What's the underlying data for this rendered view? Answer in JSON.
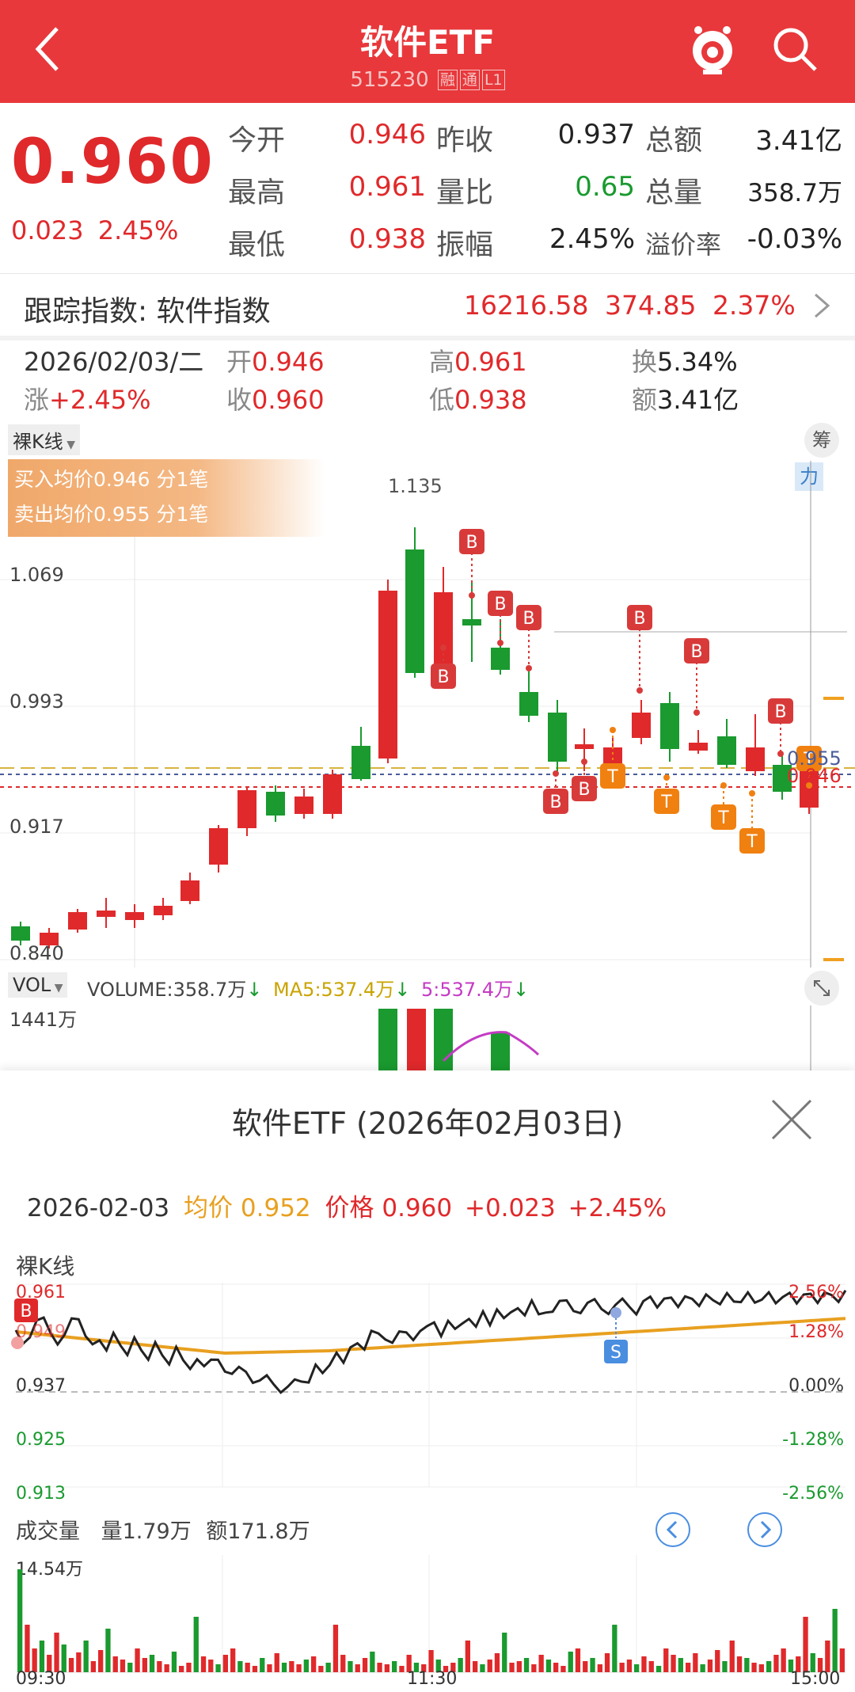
{
  "header": {
    "title": "软件ETF",
    "code": "515230",
    "tags": [
      "融",
      "通",
      "L1"
    ]
  },
  "quote": {
    "price": "0.960",
    "change": "0.023",
    "change_pct": "2.45%",
    "rows": [
      {
        "l1": "今开",
        "v1": "0.946",
        "l2": "昨收",
        "v2": "0.937",
        "l3": "总额",
        "v3": "3.41亿"
      },
      {
        "l1": "最高",
        "v1": "0.961",
        "l2": "量比",
        "v2": "0.65",
        "l3": "总量",
        "v3": "358.7万"
      },
      {
        "l1": "最低",
        "v1": "0.938",
        "l2": "振幅",
        "v2": "2.45%",
        "l3": "溢价率",
        "v3": "-0.03%"
      }
    ]
  },
  "tracking": {
    "label": "跟踪指数: 软件指数",
    "value": "16216.58",
    "change": "374.85",
    "pct": "2.37%"
  },
  "day_info": {
    "date": "2026/02/03/二",
    "open_label": "开",
    "open": "0.946",
    "high_label": "高",
    "high": "0.961",
    "turnover_label": "换",
    "turnover": "5.34%",
    "chg_label": "涨",
    "chg": "+2.45%",
    "close_label": "收",
    "close": "0.960",
    "low_label": "低",
    "low": "0.938",
    "amount_label": "额",
    "amount": "3.41亿"
  },
  "kline": {
    "mode_label": "裸K线",
    "chip_label": "筹",
    "side_label": "力",
    "buy_text": "买入均价0.946 分1笔",
    "sell_text": "卖出均价0.955 分1笔",
    "y_labels": [
      "1.069",
      "0.993",
      "0.917",
      "0.840"
    ],
    "high_label": "1.135",
    "right_marks": [
      "0.955",
      "0.946"
    ]
  },
  "vol": {
    "label": "VOL",
    "volume": "VOLUME:358.7万",
    "ma5": "MA5:537.4万",
    "five": "5:537.4万",
    "top": "1441万"
  },
  "sheet": {
    "title": "软件ETF (2026年02月03日)",
    "date": "2026-02-03",
    "avg_label": "均价",
    "avg": "0.952",
    "price_label": "价格",
    "price": "0.960",
    "chg": "+0.023",
    "pct": "+2.45%",
    "mode_label": "裸K线",
    "left_axis": [
      "0.961",
      "0.949",
      "0.937",
      "0.925",
      "0.913"
    ],
    "right_axis": [
      "2.56%",
      "1.28%",
      "0.00%",
      "-1.28%",
      "-2.56%"
    ],
    "vol_label": "成交量",
    "vol_qty": "量1.79万",
    "vol_amt": "额171.8万",
    "vol_top": "14.54万",
    "time_labels": [
      "09:30",
      "11:30",
      "15:00"
    ]
  },
  "colors": {
    "up": "#e0292b",
    "down": "#1a9a2f",
    "header": "#e8383b",
    "avg_line": "#e8a020"
  }
}
